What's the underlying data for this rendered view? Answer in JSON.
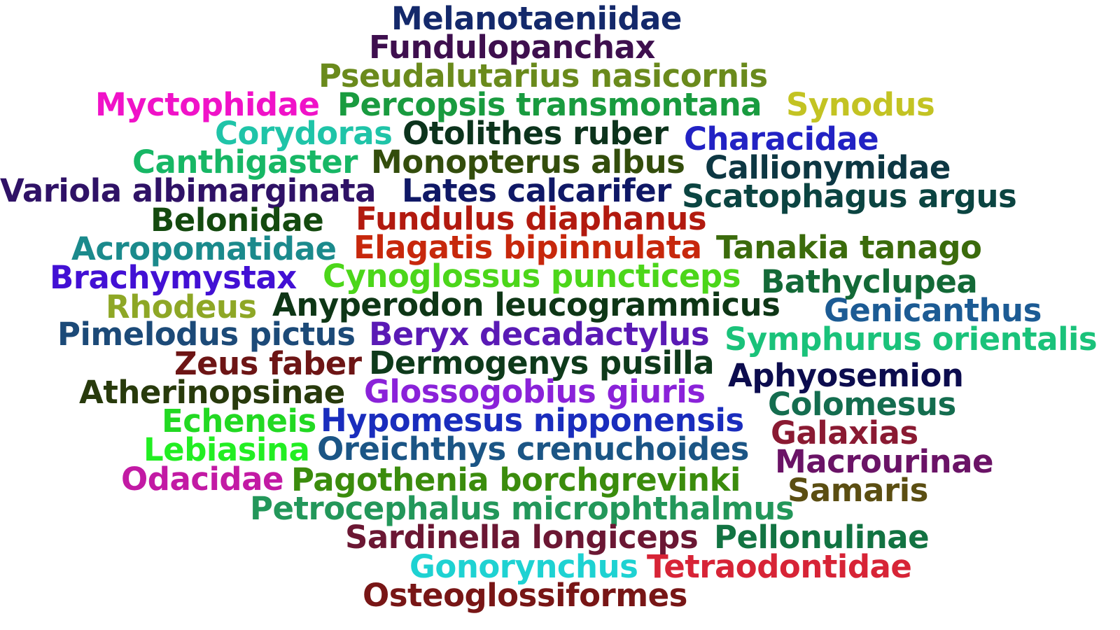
{
  "words": [
    {
      "text": "Melanotaeniidae",
      "color": "#14296b"
    },
    {
      "text": "Fundulopanchax",
      "color": "#3e0f4e"
    },
    {
      "text": "Pseudalutarius nasicornis",
      "color": "#6a8a1c"
    },
    {
      "text": "Myctophidae",
      "color": "#f012c8"
    },
    {
      "text": "Percopsis transmontana",
      "color": "#199b3f"
    },
    {
      "text": "Synodus",
      "color": "#c3c323"
    },
    {
      "text": "Corydoras",
      "color": "#1fc4a8"
    },
    {
      "text": "Otolithes ruber",
      "color": "#0c331c"
    },
    {
      "text": "Characidae",
      "color": "#2222c4"
    },
    {
      "text": "Canthigaster",
      "color": "#17b765"
    },
    {
      "text": "Monopterus albus",
      "color": "#334d0c"
    },
    {
      "text": "Callionymidae",
      "color": "#0d3743"
    },
    {
      "text": "Variola albimarginata",
      "color": "#2f1266"
    },
    {
      "text": "Lates calcarifer",
      "color": "#0f1866"
    },
    {
      "text": "Scatophagus argus",
      "color": "#0b4441"
    },
    {
      "text": "Belonidae",
      "color": "#144a0f"
    },
    {
      "text": "Fundulus diaphanus",
      "color": "#b21a0f"
    },
    {
      "text": "Acropomatidae",
      "color": "#1b8a8c"
    },
    {
      "text": "Elagatis bipinnulata",
      "color": "#c7280c"
    },
    {
      "text": "Tanakia tanago",
      "color": "#3b6b0c"
    },
    {
      "text": "Brachymystax",
      "color": "#4210d4"
    },
    {
      "text": "Cynoglossus puncticeps",
      "color": "#4cd61a"
    },
    {
      "text": "Bathyclupea",
      "color": "#136937"
    },
    {
      "text": "Rhodeus",
      "color": "#8ea726"
    },
    {
      "text": "Anyperodon leucogrammicus",
      "color": "#0e3616"
    },
    {
      "text": "Genicanthus",
      "color": "#1c5b94"
    },
    {
      "text": "Pimelodus pictus",
      "color": "#1c4a78"
    },
    {
      "text": "Beryx decadactylus",
      "color": "#5a1ab5"
    },
    {
      "text": "Symphurus orientalis",
      "color": "#1ac27a"
    },
    {
      "text": "Zeus faber",
      "color": "#6d1515"
    },
    {
      "text": "Dermogenys pusilla",
      "color": "#0e3a1b"
    },
    {
      "text": "Aphyosemion",
      "color": "#0c0c4e"
    },
    {
      "text": "Atherinopsinae",
      "color": "#283a0c"
    },
    {
      "text": "Glossogobius giuris",
      "color": "#8a22d9"
    },
    {
      "text": "Colomesus",
      "color": "#146d4f"
    },
    {
      "text": "Echeneis",
      "color": "#22d922"
    },
    {
      "text": "Hypomesus nipponensis",
      "color": "#1a2dbd"
    },
    {
      "text": "Galaxias",
      "color": "#8a1a32"
    },
    {
      "text": "Lebiasina",
      "color": "#22ee22"
    },
    {
      "text": "Oreichthys crenuchoides",
      "color": "#1b5585"
    },
    {
      "text": "Macrourinae",
      "color": "#6a1366"
    },
    {
      "text": "Odacidae",
      "color": "#c21aa4"
    },
    {
      "text": "Pagothenia borchgrevinki",
      "color": "#3b8c0d"
    },
    {
      "text": "Samaris",
      "color": "#5b4e12"
    },
    {
      "text": "Petrocephalus microphthalmus",
      "color": "#23975a"
    },
    {
      "text": "Sardinella longiceps",
      "color": "#6b1733"
    },
    {
      "text": "Pellonulinae",
      "color": "#127342"
    },
    {
      "text": "Gonorynchus",
      "color": "#1ed2d2"
    },
    {
      "text": "Tetraodontidae",
      "color": "#d72436"
    },
    {
      "text": "Osteoglossiformes",
      "color": "#781616"
    }
  ]
}
